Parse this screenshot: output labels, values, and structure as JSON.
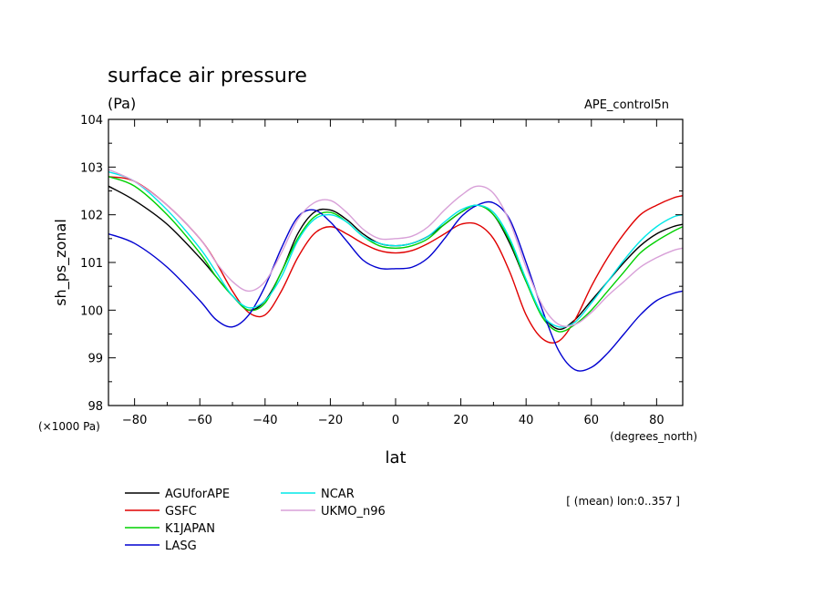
{
  "chart_data": {
    "type": "line",
    "title": "surface air pressure",
    "units": "(Pa)",
    "experiment": "APE_control5n",
    "ylabel": "sh_ps_zonal",
    "xlabel": "lat",
    "y_scale_label": "(×1000 Pa)",
    "x_unit_label": "(degrees_north)",
    "note": "[ (mean) lon:0..357 ]",
    "xlim": [
      -88,
      88
    ],
    "ylim": [
      98,
      104
    ],
    "xticks": [
      -80,
      -60,
      -40,
      -20,
      0,
      20,
      40,
      60,
      80
    ],
    "xtick_labels": [
      "−80",
      "−60",
      "−40",
      "−20",
      "0",
      "20",
      "40",
      "60",
      "80"
    ],
    "yticks": [
      98,
      99,
      100,
      101,
      102,
      103,
      104
    ],
    "ytick_labels": [
      "98",
      "99",
      "100",
      "101",
      "102",
      "103",
      "104"
    ],
    "series": [
      {
        "name": "AGUforAPE",
        "color": "#000000",
        "x": [
          -88,
          -80,
          -70,
          -60,
          -55,
          -50,
          -45,
          -40,
          -35,
          -30,
          -25,
          -20,
          -15,
          -10,
          -5,
          0,
          5,
          10,
          15,
          20,
          25,
          30,
          35,
          40,
          45,
          50,
          55,
          60,
          65,
          70,
          75,
          80,
          85,
          88
        ],
        "y": [
          102.6,
          102.3,
          101.8,
          101.1,
          100.7,
          100.3,
          100.0,
          100.2,
          100.8,
          101.6,
          102.05,
          102.1,
          101.9,
          101.6,
          101.4,
          101.35,
          101.4,
          101.55,
          101.8,
          102.05,
          102.2,
          102.0,
          101.4,
          100.6,
          99.9,
          99.6,
          99.8,
          100.2,
          100.6,
          101.0,
          101.35,
          101.6,
          101.75,
          101.8
        ]
      },
      {
        "name": "GSFC",
        "color": "#e00000",
        "x": [
          -88,
          -80,
          -70,
          -60,
          -55,
          -50,
          -45,
          -40,
          -35,
          -30,
          -25,
          -20,
          -15,
          -10,
          -5,
          0,
          5,
          10,
          15,
          20,
          25,
          30,
          35,
          40,
          45,
          50,
          55,
          60,
          65,
          70,
          75,
          80,
          85,
          88
        ],
        "y": [
          102.8,
          102.7,
          102.2,
          101.5,
          101.0,
          100.4,
          99.95,
          99.9,
          100.4,
          101.1,
          101.6,
          101.75,
          101.6,
          101.4,
          101.25,
          101.2,
          101.25,
          101.4,
          101.6,
          101.8,
          101.8,
          101.5,
          100.8,
          99.9,
          99.4,
          99.35,
          99.8,
          100.5,
          101.1,
          101.6,
          102.0,
          102.2,
          102.35,
          102.4
        ]
      },
      {
        "name": "K1JAPAN",
        "color": "#00d000",
        "x": [
          -88,
          -80,
          -70,
          -60,
          -55,
          -50,
          -45,
          -40,
          -35,
          -30,
          -25,
          -20,
          -15,
          -10,
          -5,
          0,
          5,
          10,
          15,
          20,
          25,
          30,
          35,
          40,
          45,
          50,
          55,
          60,
          65,
          70,
          75,
          80,
          85,
          88
        ],
        "y": [
          102.8,
          102.6,
          102.0,
          101.2,
          100.7,
          100.3,
          100.0,
          100.15,
          100.8,
          101.5,
          101.95,
          102.05,
          101.85,
          101.55,
          101.35,
          101.3,
          101.35,
          101.5,
          101.8,
          102.05,
          102.2,
          102.0,
          101.45,
          100.6,
          99.85,
          99.55,
          99.7,
          100.0,
          100.4,
          100.8,
          101.2,
          101.45,
          101.65,
          101.75
        ]
      },
      {
        "name": "LASG",
        "color": "#0000d0",
        "x": [
          -88,
          -80,
          -70,
          -60,
          -55,
          -50,
          -45,
          -40,
          -35,
          -30,
          -25,
          -20,
          -15,
          -10,
          -5,
          0,
          5,
          10,
          15,
          20,
          25,
          30,
          35,
          40,
          45,
          50,
          55,
          60,
          65,
          70,
          75,
          80,
          85,
          88
        ],
        "y": [
          101.6,
          101.4,
          100.9,
          100.2,
          99.8,
          99.65,
          99.9,
          100.5,
          101.3,
          101.95,
          102.1,
          101.85,
          101.45,
          101.05,
          100.88,
          100.87,
          100.9,
          101.1,
          101.5,
          101.95,
          102.2,
          102.25,
          101.9,
          101.0,
          100.0,
          99.15,
          98.75,
          98.8,
          99.1,
          99.5,
          99.9,
          100.2,
          100.35,
          100.4
        ]
      },
      {
        "name": "NCAR",
        "color": "#00e8e8",
        "x": [
          -88,
          -80,
          -70,
          -60,
          -55,
          -50,
          -45,
          -40,
          -35,
          -30,
          -25,
          -20,
          -15,
          -10,
          -5,
          0,
          5,
          10,
          15,
          20,
          25,
          30,
          35,
          40,
          45,
          50,
          55,
          60,
          65,
          70,
          75,
          80,
          85,
          88
        ],
        "y": [
          102.9,
          102.7,
          102.1,
          101.3,
          100.8,
          100.3,
          100.05,
          100.2,
          100.7,
          101.45,
          101.9,
          102.0,
          101.85,
          101.55,
          101.4,
          101.35,
          101.4,
          101.55,
          101.85,
          102.1,
          102.2,
          102.05,
          101.5,
          100.65,
          99.9,
          99.65,
          99.75,
          100.15,
          100.6,
          101.05,
          101.45,
          101.75,
          101.95,
          102.0
        ]
      },
      {
        "name": "UKMO_n96",
        "color": "#d8a0d8",
        "x": [
          -88,
          -80,
          -70,
          -60,
          -55,
          -50,
          -45,
          -40,
          -35,
          -30,
          -25,
          -20,
          -15,
          -10,
          -5,
          0,
          5,
          10,
          15,
          20,
          25,
          30,
          35,
          40,
          45,
          50,
          55,
          60,
          65,
          70,
          75,
          80,
          85,
          88
        ],
        "y": [
          102.95,
          102.7,
          102.2,
          101.5,
          101.0,
          100.6,
          100.4,
          100.6,
          101.2,
          101.9,
          102.25,
          102.3,
          102.05,
          101.7,
          101.5,
          101.5,
          101.55,
          101.75,
          102.1,
          102.4,
          102.6,
          102.45,
          101.85,
          100.9,
          100.1,
          99.7,
          99.7,
          99.95,
          100.3,
          100.6,
          100.9,
          101.1,
          101.25,
          101.3
        ]
      }
    ]
  }
}
